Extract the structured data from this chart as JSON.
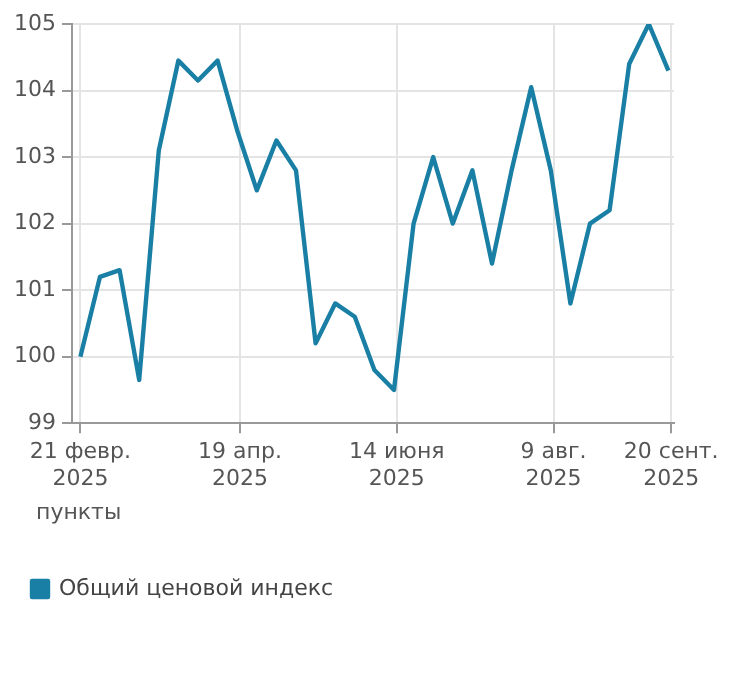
{
  "chart_data": {
    "type": "line",
    "ylabel": "пункты",
    "x": [
      "2025-02-21",
      "2025-02-28",
      "2025-03-07",
      "2025-03-14",
      "2025-03-21",
      "2025-03-28",
      "2025-04-04",
      "2025-04-11",
      "2025-04-18",
      "2025-04-25",
      "2025-05-02",
      "2025-05-09",
      "2025-05-16",
      "2025-05-23",
      "2025-05-30",
      "2025-06-06",
      "2025-06-13",
      "2025-06-20",
      "2025-06-27",
      "2025-07-04",
      "2025-07-11",
      "2025-07-18",
      "2025-07-25",
      "2025-08-01",
      "2025-08-08",
      "2025-08-15",
      "2025-08-22",
      "2025-08-29",
      "2025-09-05",
      "2025-09-12",
      "2025-09-19"
    ],
    "series": [
      {
        "name": "Общий ценовой индекс",
        "color": "#1a7fa5",
        "values": [
          100.0,
          101.2,
          101.3,
          99.65,
          103.1,
          104.45,
          104.15,
          104.45,
          103.4,
          102.5,
          103.25,
          102.8,
          100.2,
          100.8,
          100.6,
          99.8,
          99.5,
          102.0,
          103.0,
          102.0,
          102.8,
          101.4,
          102.8,
          104.05,
          102.8,
          100.8,
          102.0,
          102.2,
          104.4,
          105.0,
          104.3
        ]
      }
    ],
    "xlim": [
      "2025-02-18",
      "2025-09-21"
    ],
    "xticks": [
      {
        "value": "2025-02-21",
        "label": "21 февр.\n2025"
      },
      {
        "value": "2025-04-19",
        "label": "19 апр.\n2025"
      },
      {
        "value": "2025-06-14",
        "label": "14 июня\n2025"
      },
      {
        "value": "2025-08-09",
        "label": "9 авг.\n2025"
      },
      {
        "value": "2025-09-20",
        "label": "20 сент.\n2025"
      }
    ],
    "ylim": [
      99,
      105
    ],
    "yticks": [
      99,
      100,
      101,
      102,
      103,
      104,
      105
    ],
    "grid": true,
    "legend": "bottom left",
    "marker": "none",
    "line_style": "solid"
  }
}
